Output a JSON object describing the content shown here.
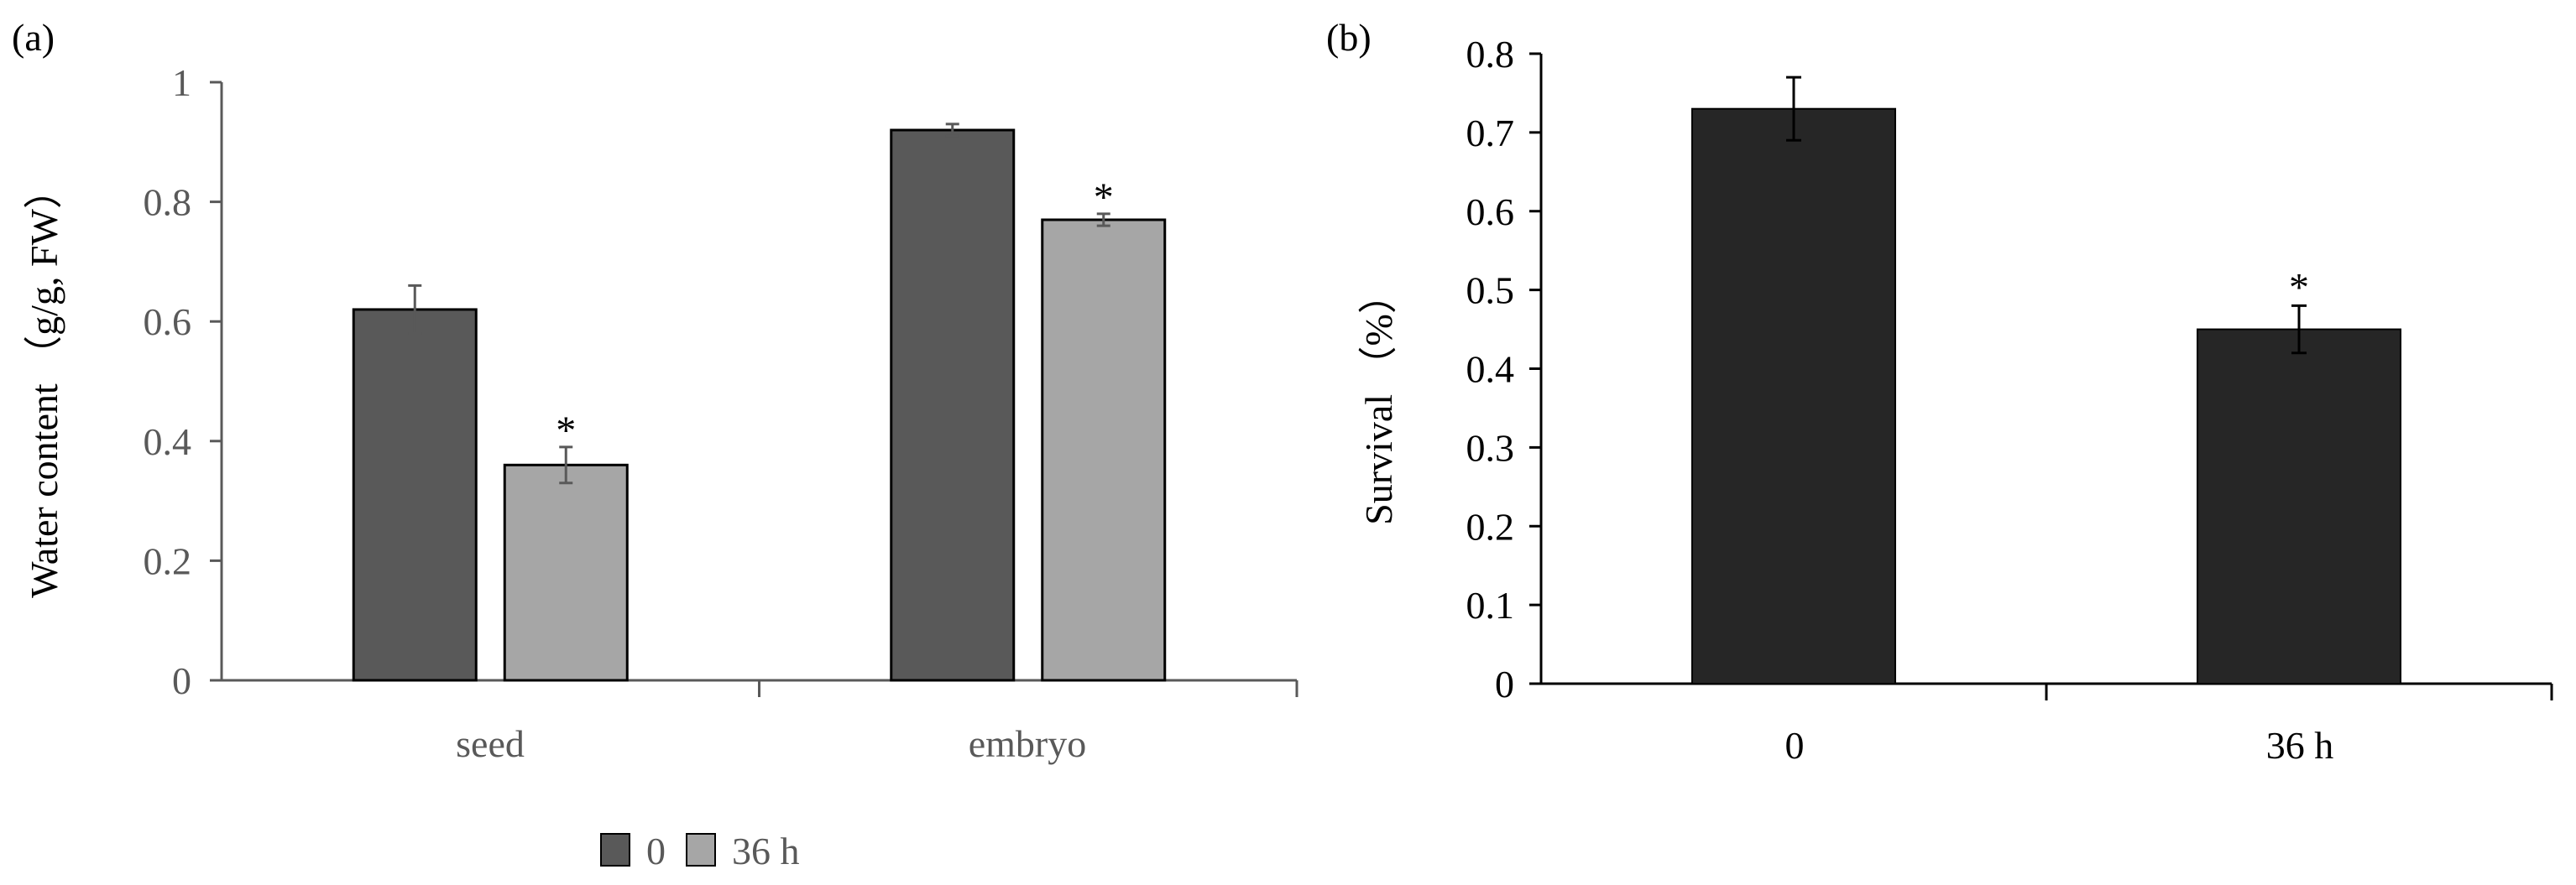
{
  "chart_data": [
    {
      "panel_label": "(a)",
      "type": "bar",
      "categories": [
        "seed",
        "embryo"
      ],
      "series": [
        {
          "name": "0",
          "values": [
            0.62,
            0.92
          ],
          "errors": [
            0.04,
            0.01
          ],
          "significant": [
            "",
            ""
          ],
          "color": "#595959"
        },
        {
          "name": "36 h",
          "values": [
            0.36,
            0.77
          ],
          "errors": [
            0.03,
            0.01
          ],
          "significant": [
            "*",
            "*"
          ],
          "color": "#a6a6a6"
        }
      ],
      "ylabel": "Water content （g/g, FW）",
      "ylim": [
        0,
        1
      ],
      "yticks": [
        "0",
        "0.2",
        "0.4",
        "0.6",
        "0.8",
        "1"
      ],
      "legend_position": "bottom",
      "grid": false
    },
    {
      "panel_label": "(b)",
      "type": "bar",
      "categories": [
        "0",
        "36 h"
      ],
      "series": [
        {
          "values": [
            0.73,
            0.45
          ],
          "errors": [
            0.04,
            0.03
          ],
          "significant": [
            "",
            "*"
          ],
          "color": "#262626"
        }
      ],
      "ylabel": "Survival （%）",
      "ylim": [
        0,
        0.8
      ],
      "yticks": [
        "0",
        "0.1",
        "0.2",
        "0.3",
        "0.4",
        "0.5",
        "0.6",
        "0.7",
        "0.8"
      ],
      "grid": false
    }
  ]
}
